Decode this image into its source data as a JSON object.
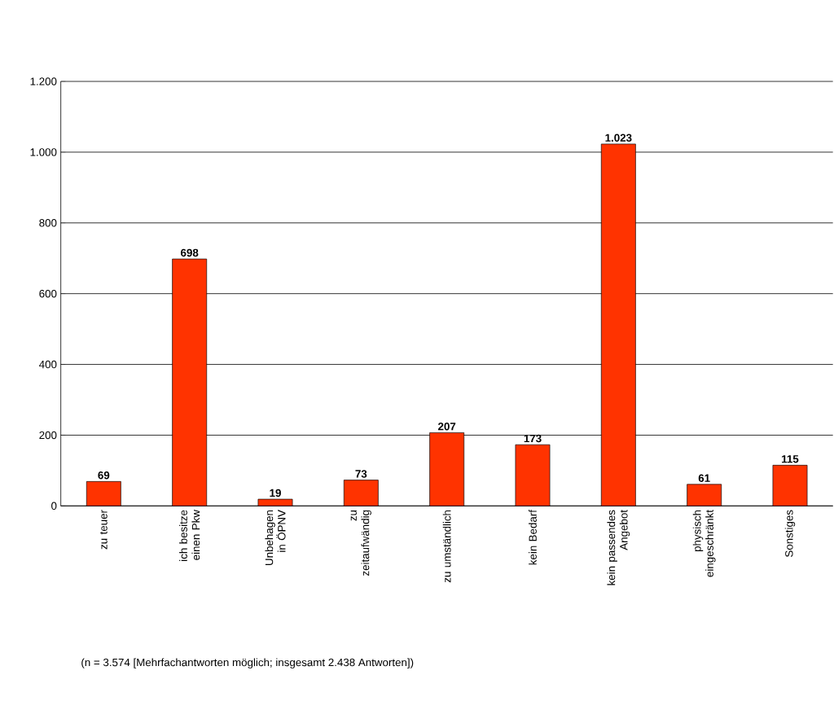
{
  "chart_data": {
    "type": "bar",
    "categories": [
      "zu teuer",
      "ich besitze einen Pkw",
      "Unbehagen in ÖPNV",
      "zu zeitaufwändig",
      "zu umständlich",
      "kein Bedarf",
      "kein passendes Angebot",
      "physisch eingeschränkt",
      "Sonstiges"
    ],
    "values": [
      69,
      698,
      19,
      73,
      207,
      173,
      1023,
      61,
      115
    ],
    "value_labels": [
      "69",
      "698",
      "19",
      "73",
      "207",
      "173",
      "1.023",
      "61",
      "115"
    ],
    "color": "#ff3300",
    "ylim": [
      0,
      1200
    ],
    "yticks": [
      0,
      200,
      400,
      600,
      800,
      {
        "value": 1000,
        "label": "1.000"
      },
      {
        "value": 1200,
        "label": "1.200"
      }
    ],
    "grid": "y",
    "annotations": [
      "(n = 3.574 [Mehrfachantworten möglich; insgesamt 2.438 Antworten])"
    ]
  }
}
